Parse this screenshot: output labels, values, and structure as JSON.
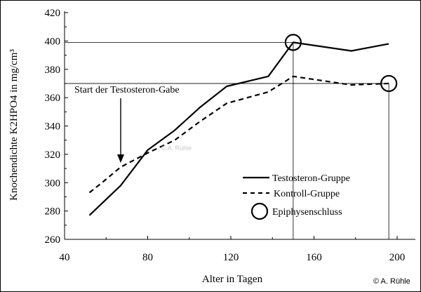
{
  "chart_data": {
    "type": "line",
    "title": "",
    "xlabel": "Alter in Tagen",
    "ylabel": "Knochendichte K2HPO4 in mg/cm³",
    "xlim": [
      40,
      200
    ],
    "ylim": [
      260,
      420
    ],
    "xticks": [
      40,
      80,
      120,
      160,
      200
    ],
    "yticks": [
      260,
      280,
      300,
      320,
      340,
      360,
      380,
      400,
      420
    ],
    "series": [
      {
        "name": "Testosteron-Gruppe",
        "style": "solid",
        "color": "#000000",
        "x": [
          52,
          67,
          80,
          93,
          105,
          118,
          138,
          150,
          178,
          196
        ],
        "y": [
          277,
          298,
          323,
          337,
          353,
          368,
          375,
          399,
          393,
          398
        ]
      },
      {
        "name": "Kontroll-Gruppe",
        "style": "dashed",
        "color": "#000000",
        "x": [
          52,
          58,
          67,
          80,
          93,
          105,
          118,
          138,
          150,
          178,
          196
        ],
        "y": [
          293,
          300,
          311,
          321,
          330,
          343,
          356,
          364,
          375,
          369,
          370
        ]
      }
    ],
    "legend": {
      "position": "bottom-right",
      "entries": [
        "Testosteron-Gruppe",
        "Kontroll-Gruppe",
        "Epiphysenschluss"
      ]
    },
    "markers": [
      {
        "label": "Epiphysenschluss",
        "x": 150,
        "y": 399
      },
      {
        "label": "Epiphysenschluss",
        "x": 196,
        "y": 370
      }
    ],
    "reference_lines": [
      {
        "x": 150,
        "y": 399
      },
      {
        "x": 196,
        "y": 370
      }
    ],
    "annotations": [
      {
        "text": "Start der Testosteron-Gabe",
        "arrow_x": 67,
        "arrow_to_y": 314
      }
    ],
    "watermark": "© A. Rühle",
    "credit": "© A. Rühle"
  }
}
